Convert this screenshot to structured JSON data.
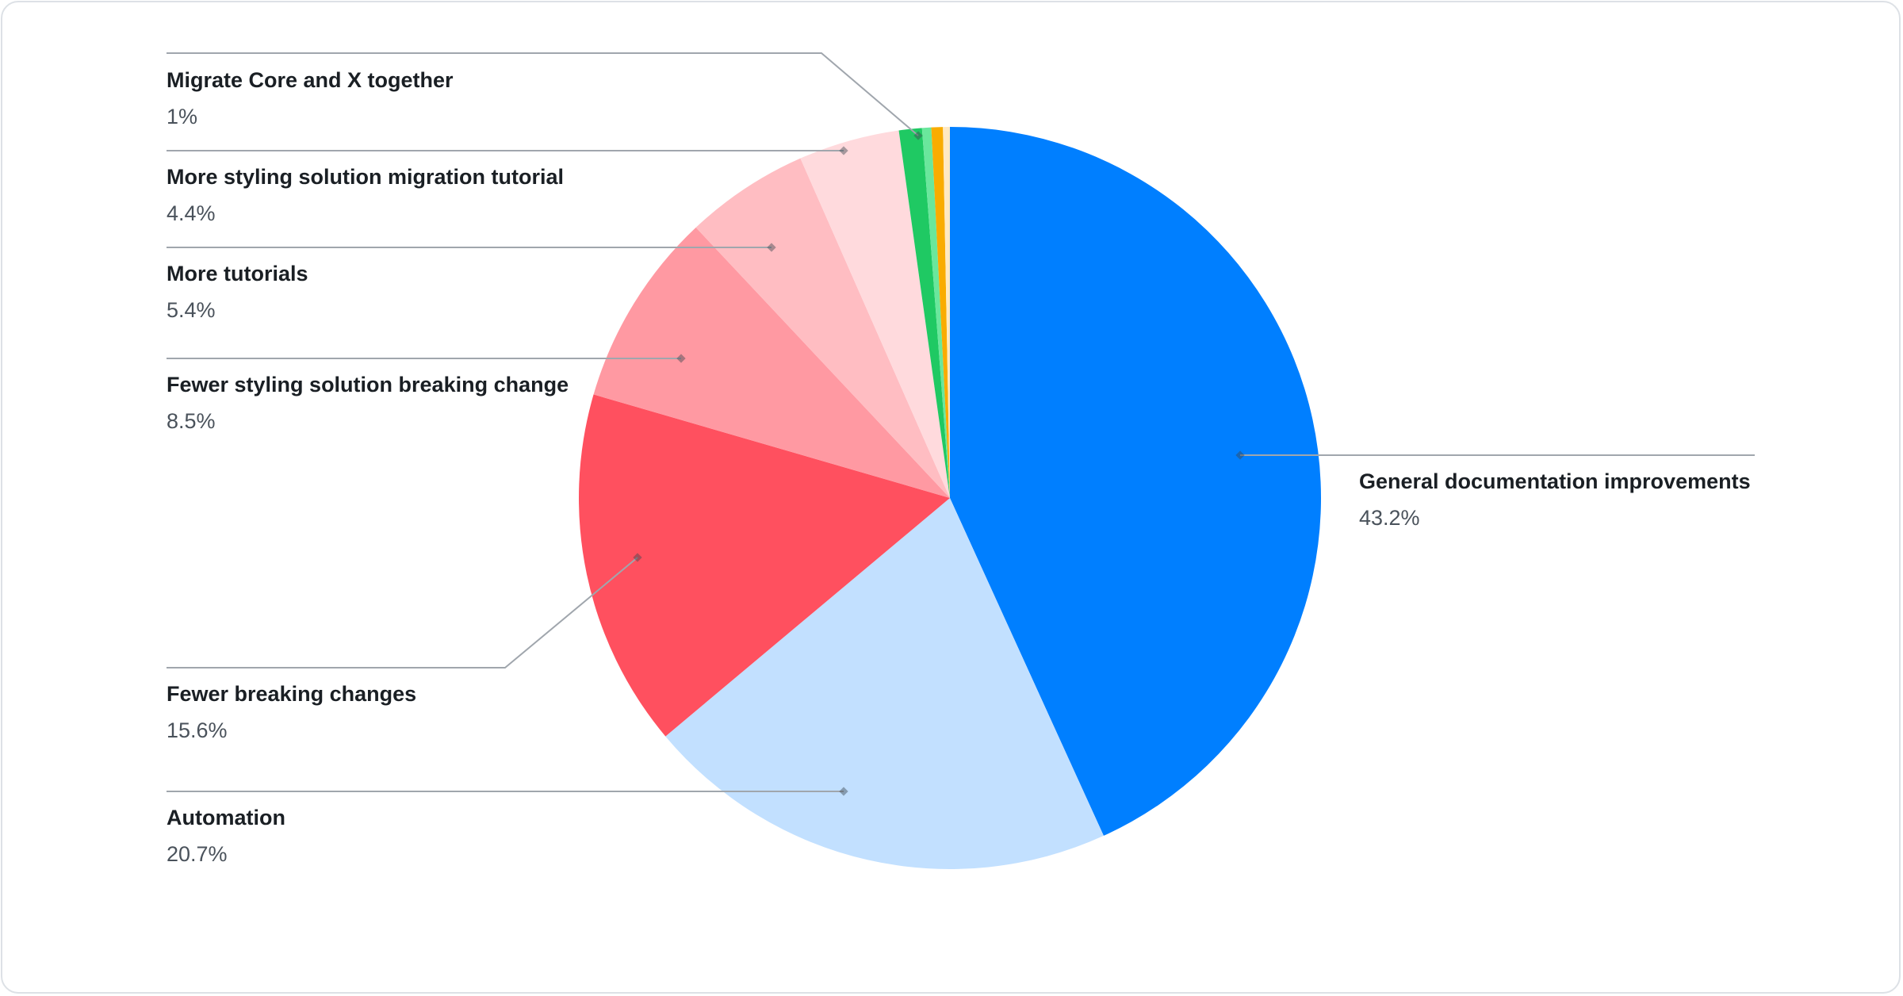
{
  "chart_data": {
    "type": "pie",
    "start_angle": "12 o'clock",
    "direction": "clockwise",
    "slices": [
      {
        "name": "General documentation improvements",
        "label": "43.2%",
        "value": 43.2,
        "color": "#007fff"
      },
      {
        "name": "Automation",
        "label": "20.7%",
        "value": 20.7,
        "color": "#c2e0ff"
      },
      {
        "name": "Fewer breaking changes",
        "label": "15.6%",
        "value": 15.6,
        "color": "#ff505f"
      },
      {
        "name": "Fewer styling solution breaking change",
        "label": "8.5%",
        "value": 8.5,
        "color": "#ff99a2"
      },
      {
        "name": "More tutorials",
        "label": "5.4%",
        "value": 5.4,
        "color": "#ffbdc2"
      },
      {
        "name": "More styling solution migration tutorial",
        "label": "4.4%",
        "value": 4.4,
        "color": "#ffdadd"
      },
      {
        "name": "Migrate Core and X together",
        "label": "1%",
        "value": 1.0,
        "color": "#1fc963"
      },
      {
        "value": 0.4,
        "color": "#6ae79c"
      },
      {
        "value": 0.5,
        "color": "#f9ac00"
      },
      {
        "value": 0.3,
        "color": "#ffe9c2"
      }
    ],
    "legend": "leader-line labels"
  }
}
